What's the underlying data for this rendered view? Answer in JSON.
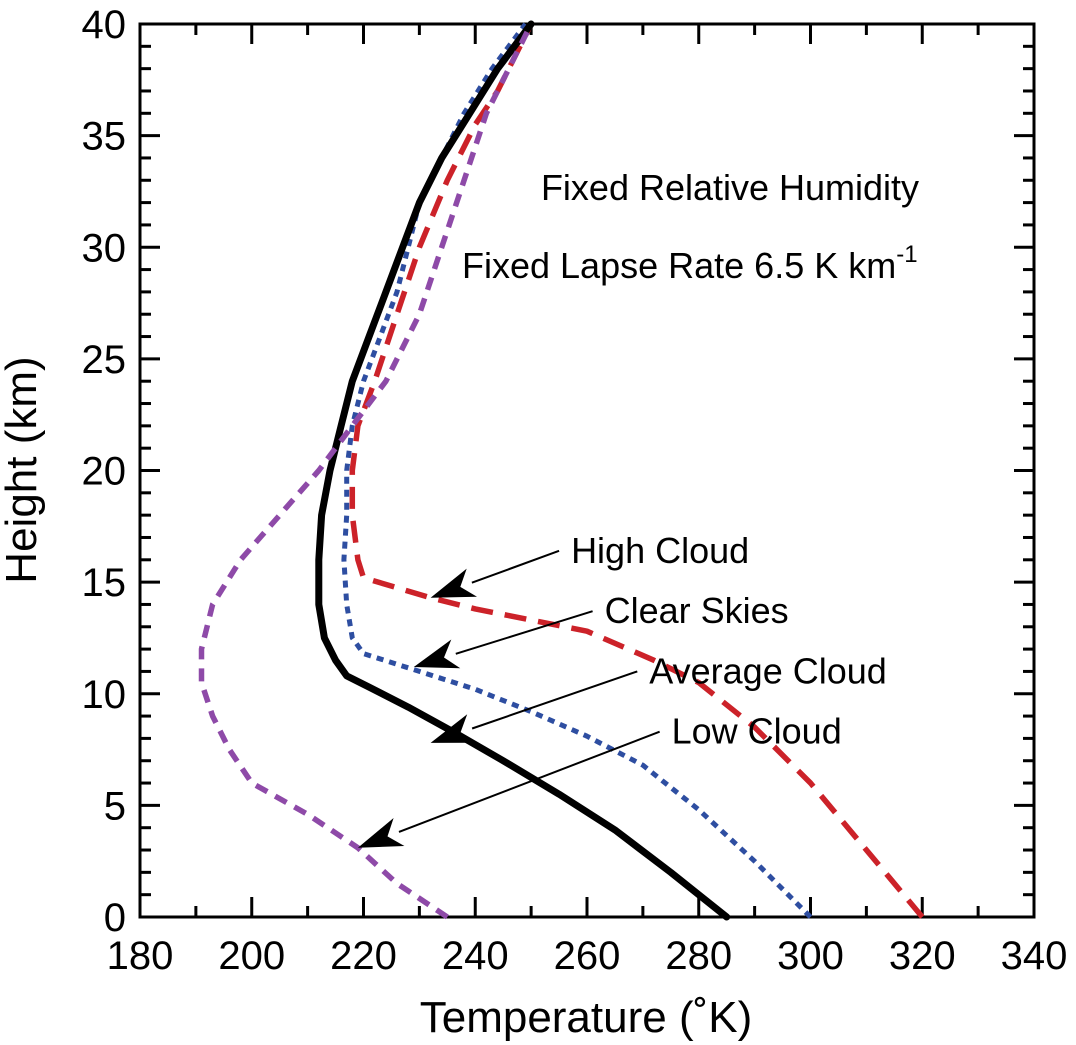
{
  "chart_data": {
    "type": "line",
    "title": "",
    "xlabel": "Temperature (˚K)",
    "ylabel": "Height (km)",
    "xlim": [
      180,
      340
    ],
    "ylim": [
      0,
      40
    ],
    "xticks": [
      180,
      200,
      220,
      240,
      260,
      280,
      300,
      320,
      340
    ],
    "yticks": [
      0,
      5,
      10,
      15,
      20,
      25,
      30,
      35,
      40
    ],
    "grid": false,
    "legend": "none",
    "annotations": {
      "line1": "Fixed Relative Humidity",
      "line2_main": "Fixed Lapse Rate 6.5 K km",
      "line2_sup": "-1"
    },
    "series": [
      {
        "name": "High Cloud",
        "color": "#cc2229",
        "style": "long-dash",
        "points": [
          [
            320,
            0
          ],
          [
            310,
            3
          ],
          [
            300,
            6
          ],
          [
            290,
            8.5
          ],
          [
            280,
            10.5
          ],
          [
            272,
            11.5
          ],
          [
            260,
            12.8
          ],
          [
            240,
            13.8
          ],
          [
            232,
            14.3
          ],
          [
            220,
            15.2
          ],
          [
            219,
            16
          ],
          [
            218,
            18
          ],
          [
            218,
            20
          ],
          [
            219,
            22
          ],
          [
            222,
            24
          ],
          [
            226,
            27
          ],
          [
            230,
            30
          ],
          [
            235,
            33
          ],
          [
            240,
            35.5
          ],
          [
            244,
            37
          ],
          [
            248,
            39
          ],
          [
            250,
            40
          ]
        ]
      },
      {
        "name": "Clear Skies",
        "color": "#2e4ea1",
        "style": "dotted",
        "points": [
          [
            300,
            0
          ],
          [
            290,
            2.5
          ],
          [
            280,
            4.8
          ],
          [
            270,
            6.8
          ],
          [
            260,
            8.1
          ],
          [
            250,
            9.2
          ],
          [
            240,
            10.2
          ],
          [
            230,
            11
          ],
          [
            220,
            11.8
          ],
          [
            218,
            12.5
          ],
          [
            217,
            14
          ],
          [
            216.5,
            16
          ],
          [
            217,
            18
          ],
          [
            217,
            20
          ],
          [
            218,
            22
          ],
          [
            220,
            24
          ],
          [
            223,
            26
          ],
          [
            226,
            28
          ],
          [
            228,
            30
          ],
          [
            230,
            32
          ],
          [
            234,
            34
          ],
          [
            238,
            36
          ],
          [
            243,
            38
          ],
          [
            249,
            40
          ]
        ]
      },
      {
        "name": "Average Cloud",
        "color": "#000000",
        "style": "solid",
        "points": [
          [
            285,
            0
          ],
          [
            275,
            2
          ],
          [
            265,
            3.9
          ],
          [
            255,
            5.5
          ],
          [
            245,
            7
          ],
          [
            236,
            8.3
          ],
          [
            228,
            9.4
          ],
          [
            221,
            10.3
          ],
          [
            217,
            10.8
          ],
          [
            215,
            11.5
          ],
          [
            213,
            12.5
          ],
          [
            212,
            14
          ],
          [
            212,
            16
          ],
          [
            212.5,
            18
          ],
          [
            214,
            20
          ],
          [
            216,
            22
          ],
          [
            218,
            24
          ],
          [
            221,
            26
          ],
          [
            224,
            28
          ],
          [
            227,
            30
          ],
          [
            230,
            32
          ],
          [
            234,
            34
          ],
          [
            239,
            36
          ],
          [
            244,
            38
          ],
          [
            250,
            40
          ]
        ]
      },
      {
        "name": "Low Cloud",
        "color": "#8e4aa8",
        "style": "short-dash",
        "points": [
          [
            235,
            0
          ],
          [
            226,
            1.5
          ],
          [
            219,
            3.1
          ],
          [
            210,
            4.6
          ],
          [
            200,
            6
          ],
          [
            196,
            7.5
          ],
          [
            193,
            9
          ],
          [
            191,
            10.5
          ],
          [
            191,
            12
          ],
          [
            193,
            14
          ],
          [
            198,
            16
          ],
          [
            205,
            18
          ],
          [
            212,
            20
          ],
          [
            218,
            22
          ],
          [
            224,
            24
          ],
          [
            230,
            27
          ],
          [
            234,
            30
          ],
          [
            238,
            33
          ],
          [
            242,
            36
          ],
          [
            246,
            38
          ],
          [
            250,
            40
          ]
        ]
      }
    ],
    "arrows": [
      {
        "label": "High Cloud",
        "target": [
          232,
          14.3
        ],
        "label_anchor": [
          255,
          16.4
        ]
      },
      {
        "label": "Clear Skies",
        "target": [
          229,
          11.2
        ],
        "label_anchor": [
          261,
          13.7
        ]
      },
      {
        "label": "Average Cloud",
        "target": [
          232,
          7.8
        ],
        "label_anchor": [
          269,
          11.0
        ]
      },
      {
        "label": "Low Cloud",
        "target": [
          219,
          3.1
        ],
        "label_anchor": [
          273,
          8.3
        ]
      }
    ]
  }
}
